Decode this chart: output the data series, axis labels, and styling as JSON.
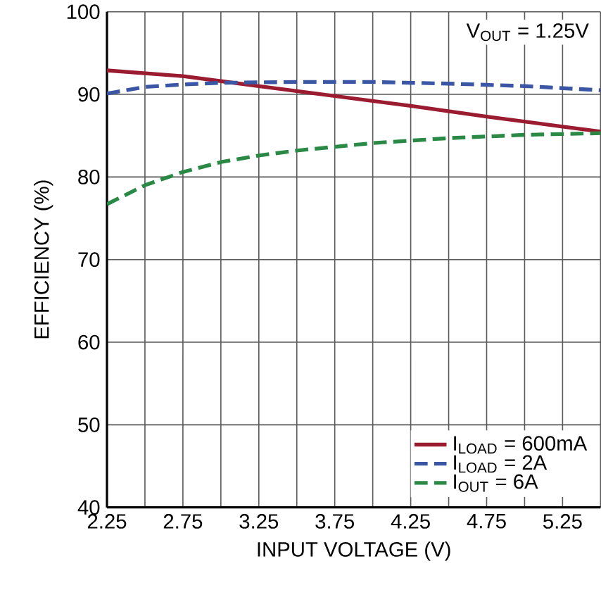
{
  "chart_data": {
    "type": "line",
    "xlabel": "INPUT VOLTAGE (V)",
    "ylabel": "EFFICIENCY (%)",
    "annotations": [
      "V$_{OUT}$ = 1.25V"
    ],
    "xlim": [
      2.25,
      5.5
    ],
    "ylim": [
      40,
      100
    ],
    "xticks": [
      2.25,
      {
        "value": 2.5,
        "label": null
      },
      2.75,
      {
        "value": 3.0,
        "label": null
      },
      3.25,
      {
        "value": 3.5,
        "label": null
      },
      3.75,
      {
        "value": 4.0,
        "label": null
      },
      4.25,
      {
        "value": 4.5,
        "label": null
      },
      4.75,
      {
        "value": 5.0,
        "label": null
      },
      5.25,
      {
        "value": 5.5,
        "label": null
      }
    ],
    "yticks": [
      40,
      50,
      60,
      70,
      80,
      90,
      100
    ],
    "grid": true,
    "legend": "bottom right",
    "series": [
      {
        "name": "I$_{LOAD}$ = 600mA",
        "color": "#9b1b30",
        "line_style": "solid",
        "x": [
          2.25,
          2.75,
          3.0,
          3.25,
          3.75,
          4.25,
          4.75,
          5.25,
          5.5
        ],
        "values": [
          92.9,
          92.2,
          91.6,
          91.0,
          89.8,
          88.6,
          87.3,
          86.1,
          85.5
        ]
      },
      {
        "name": "I$_{LOAD}$ = 2A",
        "color": "#3a56a5",
        "line_style": "dashed",
        "x": [
          2.25,
          2.5,
          2.75,
          3.0,
          3.5,
          4.0,
          4.5,
          5.0,
          5.5
        ],
        "values": [
          90.1,
          90.9,
          91.2,
          91.4,
          91.5,
          91.5,
          91.3,
          91.0,
          90.5
        ]
      },
      {
        "name": "I$_{OUT}$ = 6A",
        "color": "#2a8a45",
        "line_style": "dashed",
        "x": [
          2.25,
          2.5,
          2.75,
          3.0,
          3.25,
          3.5,
          4.0,
          4.5,
          5.0,
          5.5
        ],
        "values": [
          76.7,
          79.0,
          80.6,
          81.8,
          82.6,
          83.2,
          84.1,
          84.7,
          85.1,
          85.3
        ]
      }
    ]
  }
}
